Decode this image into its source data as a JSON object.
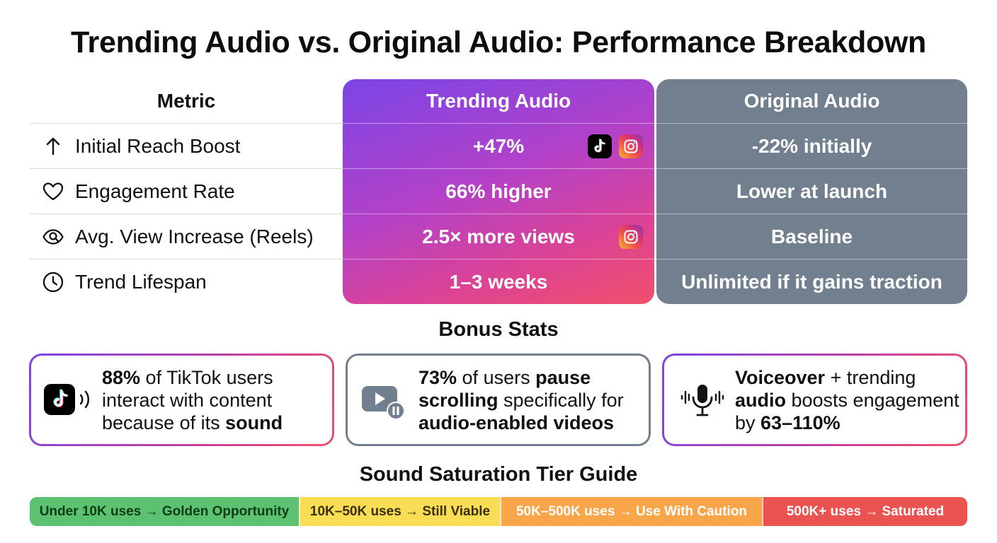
{
  "title": "Trending Audio vs. Original Audio: Performance Breakdown",
  "table": {
    "headers": {
      "metric": "Metric",
      "trending": "Trending Audio",
      "original": "Original Audio"
    },
    "rows": [
      {
        "icon": "arrow-up-icon",
        "metric": "Initial Reach Boost",
        "trending": "+47%",
        "original": "-22% initially",
        "platforms": [
          "tiktok-icon",
          "instagram-icon"
        ]
      },
      {
        "icon": "heart-icon",
        "metric": "Engagement Rate",
        "trending": "66% higher",
        "original": "Lower at launch",
        "platforms": []
      },
      {
        "icon": "eye-search-icon",
        "metric": "Avg. View Increase (Reels)",
        "trending": "2.5× more views",
        "original": "Baseline",
        "platforms": [
          "instagram-icon"
        ]
      },
      {
        "icon": "clock-icon",
        "metric": "Trend Lifespan",
        "trending": "1–3 weeks",
        "original": "Unlimited if it gains traction",
        "platforms": []
      }
    ]
  },
  "colors": {
    "trending_gradient": [
      "#7b45e6",
      "#b341c8",
      "#dc4394",
      "#f0506a"
    ],
    "original": "#717f8f",
    "tier_golden": "#5cc171",
    "tier_viable": "#f9dd55",
    "tier_caution": "#f9a64a",
    "tier_saturated": "#eb5350"
  },
  "bonus": {
    "title": "Bonus Stats",
    "cards": [
      {
        "icon": "tiktok-sound-icon",
        "parts": [
          [
            "88%",
            true
          ],
          [
            " of TikTok users interact with content because of its ",
            false
          ],
          [
            "sound",
            true
          ]
        ]
      },
      {
        "icon": "video-pause-icon",
        "parts": [
          [
            "73%",
            true
          ],
          [
            " of users ",
            false
          ],
          [
            "pause scrolling",
            true
          ],
          [
            " specifically for ",
            false
          ],
          [
            "audio-enabled videos",
            true
          ]
        ]
      },
      {
        "icon": "microphone-wave-icon",
        "parts": [
          [
            "Voiceover",
            true
          ],
          [
            " + trending ",
            false
          ],
          [
            "audio",
            true
          ],
          [
            " boosts engagement by ",
            false
          ],
          [
            "63–110%",
            true
          ]
        ]
      }
    ]
  },
  "tiers": {
    "title": "Sound Saturation Tier Guide",
    "items": [
      {
        "label": "Under 10K uses → Golden Opportunity"
      },
      {
        "label": "10K–50K uses → Still Viable"
      },
      {
        "label": "50K–500K uses → Use With Caution"
      },
      {
        "label": "500K+ uses → Saturated"
      }
    ]
  }
}
